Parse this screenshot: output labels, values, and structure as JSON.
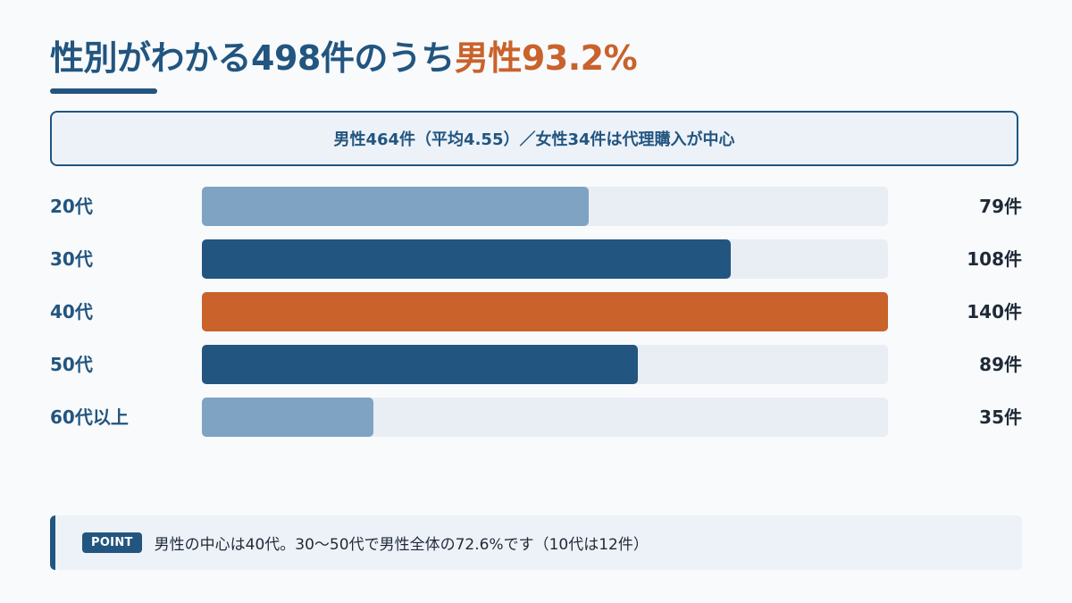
{
  "title": {
    "main": "性別がわかる498件のうち",
    "highlight": "男性93.2%"
  },
  "summary": "男性464件（平均4.55）／女性34件は代理購入が中心",
  "chart_data": {
    "type": "bar",
    "orientation": "horizontal",
    "categories": [
      "20代",
      "30代",
      "40代",
      "50代",
      "60代以上"
    ],
    "values": [
      79,
      108,
      140,
      89,
      35
    ],
    "value_labels": [
      "79件",
      "108件",
      "140件",
      "89件",
      "35件"
    ],
    "xlim": [
      0,
      140
    ],
    "bar_colors": [
      "#7fa3c3",
      "#22557f",
      "#c9622b",
      "#22557f",
      "#7fa3c3"
    ],
    "track_color": "#e9eef5"
  },
  "point": {
    "badge": "POINT",
    "text": "男性の中心は40代。30〜50代で男性全体の72.6%です（10代は12件）"
  },
  "colors": {
    "primary": "#22557f",
    "accent": "#c9622b",
    "light_bar": "#7fa3c3",
    "background": "#f8fafc"
  }
}
